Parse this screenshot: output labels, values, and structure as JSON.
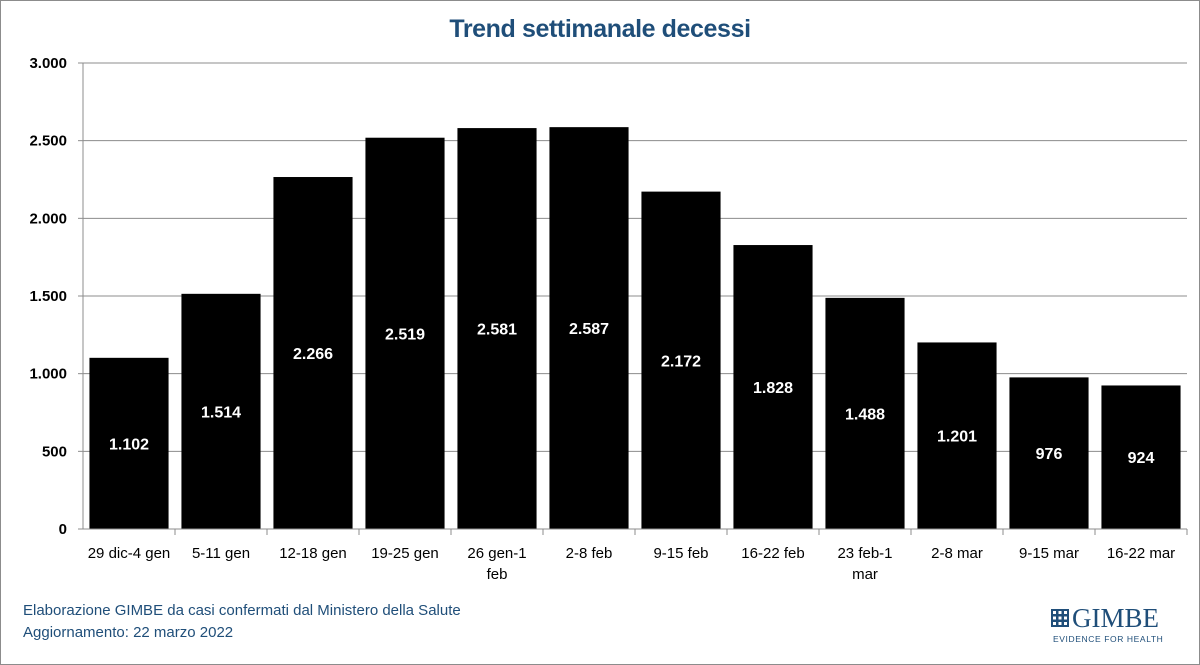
{
  "chart_data": {
    "type": "bar",
    "title": "Trend settimanale decessi",
    "xlabel": "",
    "ylabel": "",
    "ylim": [
      0,
      3000
    ],
    "yticks": [
      0,
      500,
      1000,
      1500,
      2000,
      2500,
      3000
    ],
    "ytick_labels": [
      "0",
      "500",
      "1.000",
      "1.500",
      "2.000",
      "2.500",
      "3.000"
    ],
    "grid": true,
    "categories": [
      "29 dic-4 gen",
      "5-11 gen",
      "12-18 gen",
      "19-25 gen",
      "26 gen-1 feb",
      "2-8 feb",
      "9-15 feb",
      "16-22 feb",
      "23 feb-1 mar",
      "2-8 mar",
      "9-15 mar",
      "16-22 mar"
    ],
    "category_lines": [
      [
        "29 dic-4 gen"
      ],
      [
        "5-11 gen"
      ],
      [
        "12-18 gen"
      ],
      [
        "19-25 gen"
      ],
      [
        "26 gen-1",
        "feb"
      ],
      [
        "2-8 feb"
      ],
      [
        "9-15 feb"
      ],
      [
        "16-22 feb"
      ],
      [
        "23 feb-1",
        "mar"
      ],
      [
        "2-8 mar"
      ],
      [
        "9-15 mar"
      ],
      [
        "16-22 mar"
      ]
    ],
    "values": [
      1102,
      1514,
      2266,
      2519,
      2581,
      2587,
      2172,
      1828,
      1488,
      1201,
      976,
      924
    ],
    "value_labels": [
      "1.102",
      "1.514",
      "2.266",
      "2.519",
      "2.581",
      "2.587",
      "2.172",
      "1.828",
      "1.488",
      "1.201",
      "976",
      "924"
    ],
    "bar_color": "#000000",
    "label_color": "#ffffff"
  },
  "footer": {
    "source": "Elaborazione GIMBE da casi confermati dal Ministero della Salute",
    "update": "Aggiornamento: 22 marzo 2022"
  },
  "logo": {
    "name": "GIMBE",
    "tagline": "EVIDENCE FOR HEALTH",
    "color": "#1f4e79"
  }
}
